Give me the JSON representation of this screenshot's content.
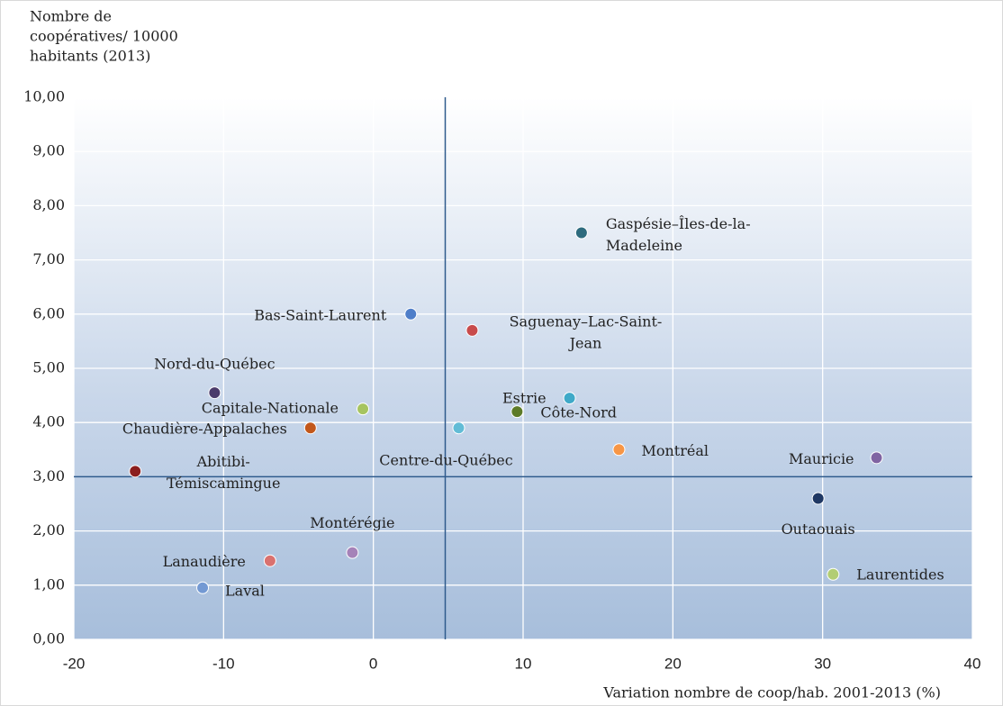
{
  "chart_data": {
    "type": "scatter",
    "y_axis_title": [
      "Nombre de",
      "coopératives/ 10000",
      "habitants (2013)"
    ],
    "x_axis_title": "Variation nombre de coop/hab. 2001-2013 (%)",
    "labels": [
      [
        "Gaspésie–Îles-de-la-",
        "Madeleine"
      ],
      [
        "Bas-Saint-Laurent"
      ],
      [
        "Saguenay–Lac-Saint-",
        "Jean"
      ],
      [
        "Nord-du-Québec"
      ],
      [
        "Capitale-Nationale"
      ],
      [
        "Chaudière-Appalaches"
      ],
      [
        "Abitibi-",
        "Témiscamingue"
      ],
      [
        "Centre-du-Québec"
      ],
      [
        "Estrie"
      ],
      [
        "Côte-Nord"
      ],
      [
        "Montréal"
      ],
      [
        "Mauricie"
      ],
      [
        "Outaouais"
      ],
      [
        "Laurentides"
      ],
      [
        "Montérégie"
      ],
      [
        "Lanaudière"
      ],
      [
        "Laval"
      ]
    ],
    "x": [
      13.9,
      2.5,
      6.6,
      -10.6,
      -0.7,
      -4.2,
      -15.9,
      5.7,
      13.1,
      9.6,
      16.4,
      33.6,
      29.7,
      30.7,
      -1.4,
      -6.9,
      -11.4
    ],
    "values": [
      7.5,
      6.0,
      5.7,
      4.55,
      4.25,
      3.9,
      3.1,
      3.9,
      4.45,
      4.2,
      3.5,
      3.35,
      2.6,
      1.2,
      1.6,
      1.45,
      0.95
    ],
    "colors": [
      "#2e6b7e",
      "#4f7ec9",
      "#c84b4b",
      "#4b3b6b",
      "#a6c460",
      "#c2571a",
      "#8b1e1e",
      "#62bcd6",
      "#3fa9c8",
      "#5d7b28",
      "#f79646",
      "#8064a2",
      "#1f3864",
      "#b2cd73",
      "#a582b8",
      "#d9716f",
      "#7399d3"
    ],
    "reference_x": 4.8,
    "reference_y": 3.0,
    "reference_color": "#2e5a8c",
    "xlim": [
      -20,
      40
    ],
    "xticks": [
      -20,
      -10,
      0,
      10,
      20,
      30,
      40
    ],
    "ylim": [
      0,
      10
    ],
    "yticks": [
      {
        "value": 0,
        "label": "0,00"
      },
      {
        "value": 1,
        "label": "1,00"
      },
      {
        "value": 2,
        "label": "2,00"
      },
      {
        "value": 3,
        "label": "3,00"
      },
      {
        "value": 4,
        "label": "4,00"
      },
      {
        "value": 5,
        "label": "5,00"
      },
      {
        "value": 6,
        "label": "6,00"
      },
      {
        "value": 7,
        "label": "7,00"
      },
      {
        "value": 8,
        "label": "8,00"
      },
      {
        "value": 9,
        "label": "9,00"
      },
      {
        "value": 10,
        "label": "10,00"
      }
    ],
    "grid": true
  }
}
